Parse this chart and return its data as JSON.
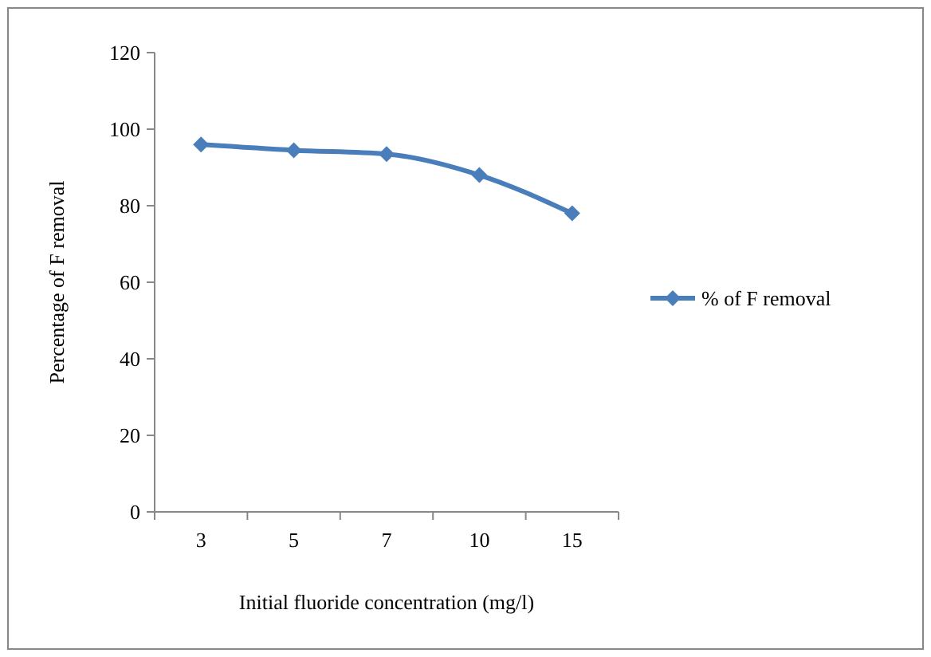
{
  "chart_data": {
    "type": "line",
    "xlabel": "Initial fluoride concentration (mg/l)",
    "ylabel": "Percentage of F removal",
    "categories": [
      "3",
      "5",
      "7",
      "10",
      "15"
    ],
    "series": [
      {
        "name": "% of F removal",
        "color": "#4a7ebb",
        "values": [
          96,
          94.5,
          93.5,
          88,
          78
        ]
      }
    ],
    "ylim": [
      0,
      120
    ],
    "yticks": [
      0,
      20,
      40,
      60,
      80,
      100,
      120
    ],
    "grid": false,
    "legend": "right",
    "marker": "diamond",
    "line_style": "solid"
  }
}
